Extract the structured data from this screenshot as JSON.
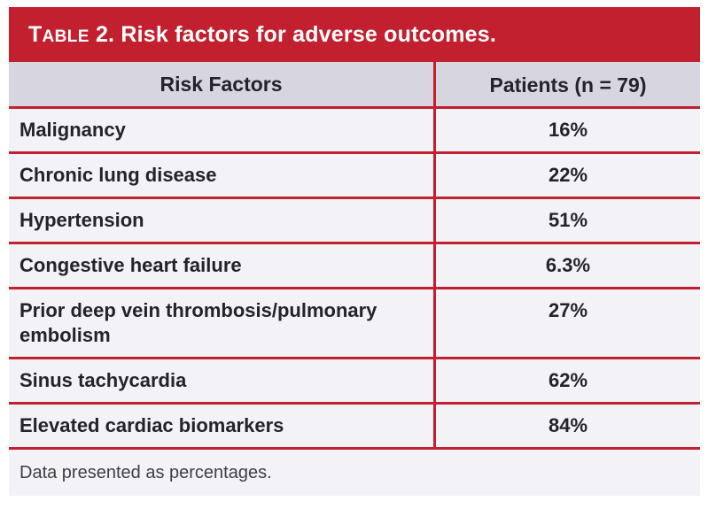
{
  "table": {
    "title": {
      "prefix_cap": "T",
      "prefix_smallcaps": "ABLE",
      "rest": " 2. Risk factors for adverse outcomes."
    },
    "columns": [
      "Risk Factors",
      "Patients (n = 79)"
    ],
    "rows": [
      {
        "factor": "Malignancy",
        "value": "16%"
      },
      {
        "factor": "Chronic lung disease",
        "value": "22%"
      },
      {
        "factor": "Hypertension",
        "value": "51%"
      },
      {
        "factor": "Congestive heart failure",
        "value": "6.3%"
      },
      {
        "factor": "Prior deep vein thrombosis/pulmonary embolism",
        "value": "27%"
      },
      {
        "factor": "Sinus tachycardia",
        "value": "62%"
      },
      {
        "factor": "Elevated cardiac biomarkers",
        "value": "84%"
      }
    ],
    "footnote": "Data presented as percentages.",
    "colors": {
      "accent_red": "#c2202f",
      "title_text": "#ffffff",
      "header_row_bg": "#d7d5de",
      "row_bg": "#f3f2f6",
      "footer_bg": "#f3f2f6",
      "body_text": "#26222b",
      "footer_text": "#3f3d47",
      "page_bg": "#ffffff"
    }
  }
}
